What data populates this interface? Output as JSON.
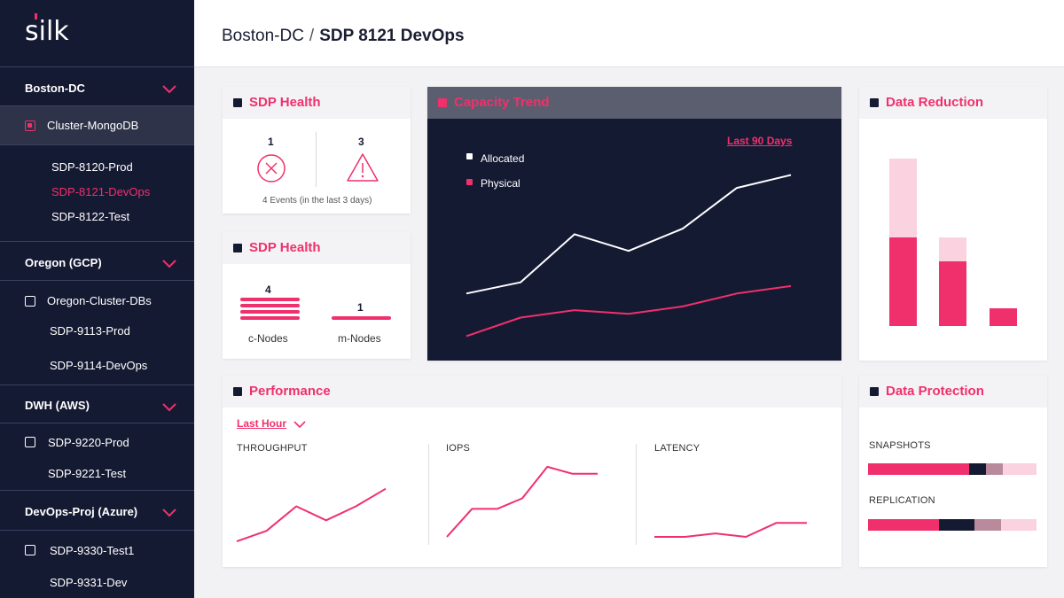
{
  "sidebar": {
    "logo": "silk",
    "groups": [
      {
        "label": "Boston-DC",
        "cluster": {
          "label": "Cluster-MongoDB",
          "checked": true
        },
        "items": [
          {
            "label": "SDP-8120-Prod",
            "active": false
          },
          {
            "label": "SDP-8121-DevOps",
            "active": true
          },
          {
            "label": "SDP-8122-Test",
            "active": false
          }
        ]
      },
      {
        "label": "Oregon (GCP)",
        "cluster": {
          "label": "Oregon-Cluster-DBs",
          "checked": false
        },
        "items": [
          {
            "label": "SDP-9113-Prod"
          },
          {
            "label": "SDP-9114-DevOps"
          }
        ]
      },
      {
        "label": "DWH (AWS)",
        "cluster": {
          "label": "SDP-9220-Prod",
          "checked": false
        },
        "items": [
          {
            "label": "SDP-9221-Test"
          }
        ]
      },
      {
        "label": "DevOps-Proj (Azure)",
        "cluster": {
          "label": "SDP-9330-Test1",
          "checked": false
        },
        "items": [
          {
            "label": "SDP-9331-Dev"
          }
        ]
      }
    ]
  },
  "header": {
    "parent": "Boston-DC",
    "separator": "/",
    "current": "SDP 8121 DevOps"
  },
  "health_events": {
    "title": "SDP Health",
    "errors": "1",
    "warnings": "3",
    "caption": "4 Events (in the last 3 days)"
  },
  "health_nodes": {
    "title": "SDP Health",
    "c_nodes_count": "4",
    "c_nodes_label": "c-Nodes",
    "m_nodes_count": "1",
    "m_nodes_label": "m-Nodes"
  },
  "capacity": {
    "title": "Capacity Trend",
    "range_link": "Last 90 Days",
    "legend": {
      "allocated": "Allocated",
      "physical": "Physical"
    }
  },
  "data_reduction": {
    "title": "Data Reduction"
  },
  "performance": {
    "title": "Performance",
    "range_link": "Last Hour",
    "throughput_label": "THROUGHPUT",
    "iops_label": "IOPS",
    "latency_label": "LATENCY"
  },
  "data_protection": {
    "title": "Data Protection",
    "snapshots_label": "SNAPSHOTS",
    "replication_label": "REPLICATION",
    "snapshots": [
      0.6,
      0.1,
      0.1,
      0.2
    ],
    "replication": [
      0.42,
      0.21,
      0.16,
      0.21
    ]
  },
  "chart_data": [
    {
      "type": "line",
      "title": "Capacity Trend",
      "x": [
        1,
        2,
        3,
        4,
        5,
        6,
        7
      ],
      "series": [
        {
          "name": "Allocated",
          "values": [
            20,
            26,
            52,
            43,
            55,
            77,
            84
          ],
          "color": "#ffffff"
        },
        {
          "name": "Physical",
          "values": [
            -3,
            7,
            11,
            9,
            13,
            20,
            24
          ],
          "color": "#f0306c"
        }
      ],
      "ylim": [
        -10,
        100
      ]
    },
    {
      "type": "bar",
      "title": "Data Reduction",
      "categories": [
        "1",
        "2",
        "3"
      ],
      "series": [
        {
          "name": "base",
          "values": [
            100,
            73,
            20
          ],
          "color": "#f0306c"
        },
        {
          "name": "top",
          "values": [
            89,
            27,
            0
          ],
          "color": "#fbd2df"
        }
      ],
      "ylim": [
        0,
        200
      ]
    },
    {
      "type": "line",
      "title": "THROUGHPUT",
      "x": [
        1,
        2,
        3,
        4,
        5,
        6
      ],
      "series": [
        {
          "values": [
            10,
            25,
            60,
            40,
            60,
            85
          ],
          "color": "#f0306c"
        }
      ],
      "ylim": [
        0,
        120
      ]
    },
    {
      "type": "line",
      "title": "IOPS",
      "x": [
        1,
        2,
        3,
        4,
        5,
        6,
        7
      ],
      "series": [
        {
          "values": [
            5,
            45,
            45,
            60,
            105,
            95,
            95
          ],
          "color": "#f0306c"
        }
      ],
      "ylim": [
        0,
        120
      ]
    },
    {
      "type": "line",
      "title": "LATENCY",
      "x": [
        1,
        2,
        3,
        4,
        5,
        6
      ],
      "series": [
        {
          "values": [
            5,
            5,
            10,
            5,
            25,
            25
          ],
          "color": "#f0306c"
        }
      ],
      "ylim": [
        0,
        120
      ]
    }
  ],
  "colors": {
    "accent": "#f0306c",
    "accent_light": "#fbd2df",
    "navy": "#151a33",
    "mauve": "#b98a9c"
  }
}
